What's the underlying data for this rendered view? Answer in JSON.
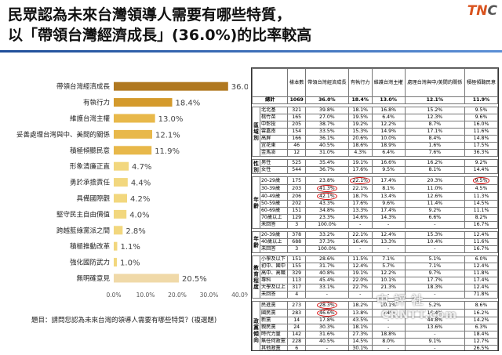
{
  "title": {
    "line1": "民眾認為未來台灣領導人需要有哪些特質，",
    "line2": "以「帶領台灣經濟成長」(36.0%)的比率較高"
  },
  "logo": {
    "text_a": "TN",
    "text_b": "C"
  },
  "note": "題目：請問您認為未來台灣的領導人需要有哪些特質？(複選題)",
  "watermark": {
    "line1": "中 評 社",
    "line2": "CRNTT.com"
  },
  "chart_data": {
    "type": "bar",
    "orientation": "horizontal",
    "categories": [
      "帶領台灣經濟成長",
      "有執行力",
      "維護台灣主權",
      "妥善處理台灣與中、美間的關係",
      "積極傾聽民意",
      "形象清廉正直",
      "勇於承擔責任",
      "具備國際觀",
      "堅守民主自由價值",
      "跨越藍綠黨派之間",
      "積極推動改革",
      "強化國防武力",
      "無明確意見"
    ],
    "values": [
      36.0,
      18.4,
      13.0,
      12.1,
      11.9,
      4.7,
      4.4,
      4.2,
      4.0,
      2.8,
      1.1,
      1.0,
      20.5
    ],
    "value_labels": [
      "36.0%",
      "18.4%",
      "13.0%",
      "12.1%",
      "11.9%",
      "4.7%",
      "4.4%",
      "4.2%",
      "4.0%",
      "2.8%",
      "1.1%",
      "1.0%",
      "20.5%"
    ],
    "xlim": [
      0,
      40
    ],
    "xticks": [
      "0.0%",
      "10.0%",
      "20.0%",
      "30.0%",
      "40.0%"
    ],
    "colors": {
      "top": "#b07820",
      "high": "#d49a2c",
      "mid": "#e8b84a",
      "low": "#f2d77e",
      "none": "#f0d9a8"
    },
    "grid": false
  },
  "table": {
    "headers": [
      "樣本數",
      "帶領台灣經濟成長",
      "有執行力",
      "維護台灣主權",
      "處理台灣與中/美間的關係",
      "積極傾聽民意"
    ],
    "total": {
      "label": "總計",
      "values": [
        "1069",
        "36.0%",
        "18.4%",
        "13.0%",
        "12.1%",
        "11.9%"
      ]
    },
    "groups": [
      {
        "name": "區域別",
        "rows": [
          {
            "label": "北北基",
            "values": [
              "321",
              "39.8%",
              "18.1%",
              "16.8%",
              "15.2%",
              "9.5%"
            ]
          },
          {
            "label": "桃竹苗",
            "values": [
              "165",
              "27.0%",
              "19.5%",
              "6.4%",
              "12.3%",
              "9.6%"
            ]
          },
          {
            "label": "中彰投",
            "values": [
              "205",
              "38.7%",
              "19.2%",
              "12.2%",
              "8.7%",
              "16.0%"
            ]
          },
          {
            "label": "雲嘉南",
            "values": [
              "154",
              "33.5%",
              "15.3%",
              "14.9%",
              "17.1%",
              "11.6%"
            ]
          },
          {
            "label": "高屏",
            "values": [
              "166",
              "36.1%",
              "20.6%",
              "10.0%",
              "8.4%",
              "14.8%"
            ]
          },
          {
            "label": "宜花東",
            "values": [
              "46",
              "40.5%",
              "18.6%",
              "18.9%",
              "1.6%",
              "17.5%"
            ]
          },
          {
            "label": "金馬澎",
            "values": [
              "12",
              "31.0%",
              "4.3%",
              "6.4%",
              "7.6%",
              "36.3%"
            ]
          }
        ]
      },
      {
        "name": "性別",
        "rows": [
          {
            "label": "男性",
            "values": [
              "525",
              "35.4%",
              "19.1%",
              "16.6%",
              "16.2%",
              "9.2%"
            ]
          },
          {
            "label": "女性",
            "values": [
              "544",
              "36.7%",
              "17.6%",
              "9.5%",
              "8.1%",
              "14.4%"
            ]
          }
        ]
      },
      {
        "name": "年齡",
        "rows": [
          {
            "label": "20-29歲",
            "values": [
              "175",
              "23.8%",
              "22.1%",
              "17.4%",
              "20.3%",
              "9.5%"
            ],
            "circle": [
              2,
              5
            ]
          },
          {
            "label": "30-39歲",
            "values": [
              "203",
              "41.3%",
              "22.1%",
              "8.1%",
              "11.0%",
              "4.5%"
            ],
            "circle": [
              1
            ]
          },
          {
            "label": "40-49歲",
            "values": [
              "206",
              "42.1%",
              "18.7%",
              "13.4%",
              "12.6%",
              "11.3%"
            ],
            "circle": [
              1
            ]
          },
          {
            "label": "50-59歲",
            "values": [
              "202",
              "43.3%",
              "17.6%",
              "9.6%",
              "11.4%",
              "14.5%"
            ]
          },
          {
            "label": "60-69歲",
            "values": [
              "151",
              "34.8%",
              "13.3%",
              "17.4%",
              "9.2%",
              "11.1%"
            ]
          },
          {
            "label": "70歲以上",
            "values": [
              "129",
              "23.3%",
              "14.6%",
              "14.3%",
              "6.6%",
              "8.2%"
            ]
          },
          {
            "label": "未回答",
            "values": [
              "3",
              "100.0%",
              "-",
              "-",
              "-",
              "16.7%"
            ]
          }
        ]
      },
      {
        "name": "年齡",
        "rows": [
          {
            "label": "20-39歲",
            "values": [
              "378",
              "33.2%",
              "22.1%",
              "12.4%",
              "15.3%",
              "12.4%"
            ]
          },
          {
            "label": "40歲以上",
            "values": [
              "688",
              "37.3%",
              "16.4%",
              "13.3%",
              "10.4%",
              "11.6%"
            ]
          },
          {
            "label": "未回答",
            "values": [
              "3",
              "100.0%",
              "-",
              "-",
              "-",
              "16.7%"
            ]
          }
        ]
      },
      {
        "name": "教育程度",
        "rows": [
          {
            "label": "小學及以下",
            "values": [
              "151",
              "28.6%",
              "11.5%",
              "7.1%",
              "5.1%",
              "6.0%"
            ]
          },
          {
            "label": "初中、國中",
            "values": [
              "155",
              "31.7%",
              "12.4%",
              "5.7%",
              "7.1%",
              "12.4%"
            ]
          },
          {
            "label": "高中、高職",
            "values": [
              "329",
              "40.8%",
              "19.1%",
              "12.2%",
              "9.7%",
              "11.8%"
            ]
          },
          {
            "label": "專科",
            "values": [
              "113",
              "45.4%",
              "22.0%",
              "10.1%",
              "17.7%",
              "17.4%"
            ]
          },
          {
            "label": "大學及以上",
            "values": [
              "317",
              "33.1%",
              "22.7%",
              "21.3%",
              "18.3%",
              "12.4%"
            ]
          },
          {
            "label": "未回答",
            "values": [
              "4",
              "-",
              "-",
              "-",
              "-",
              "71.8%"
            ]
          }
        ]
      },
      {
        "name": "政黨傾向",
        "rows": [
          {
            "label": "民進黨",
            "values": [
              "273",
              "28.3%",
              "18.2%",
              "20.1%",
              "5.2%",
              "8.6%"
            ],
            "circle": [
              1
            ]
          },
          {
            "label": "國民黨",
            "values": [
              "283",
              "46.6%",
              "13.8%",
              "9.4%",
              "16.4%",
              "16.2%"
            ],
            "circle": [
              1
            ]
          },
          {
            "label": "新黨",
            "values": [
              "14",
              "17.8%",
              "43.5%",
              "-",
              "44.8%",
              "14.2%"
            ]
          },
          {
            "label": "親民黨",
            "values": [
              "24",
              "30.3%",
              "18.1%",
              "-",
              "13.6%",
              "6.3%"
            ]
          },
          {
            "label": "時代力量",
            "values": [
              "142",
              "31.6%",
              "27.3%",
              "18.8%",
              "-",
              "18.4%"
            ]
          },
          {
            "label": "無任何政黨",
            "values": [
              "228",
              "40.5%",
              "14.5%",
              "8.0%",
              "9.1%",
              "12.7%"
            ]
          },
          {
            "label": "其他政黨",
            "values": [
              "6",
              "-",
              "30.1%",
              "-",
              "-",
              "26.5%"
            ]
          },
          {
            "label": "未表態",
            "values": [
              "99",
              "29.7%",
              "13.2%",
              "4.2%",
              "2.6%",
              "13.1%"
            ]
          }
        ]
      }
    ]
  }
}
